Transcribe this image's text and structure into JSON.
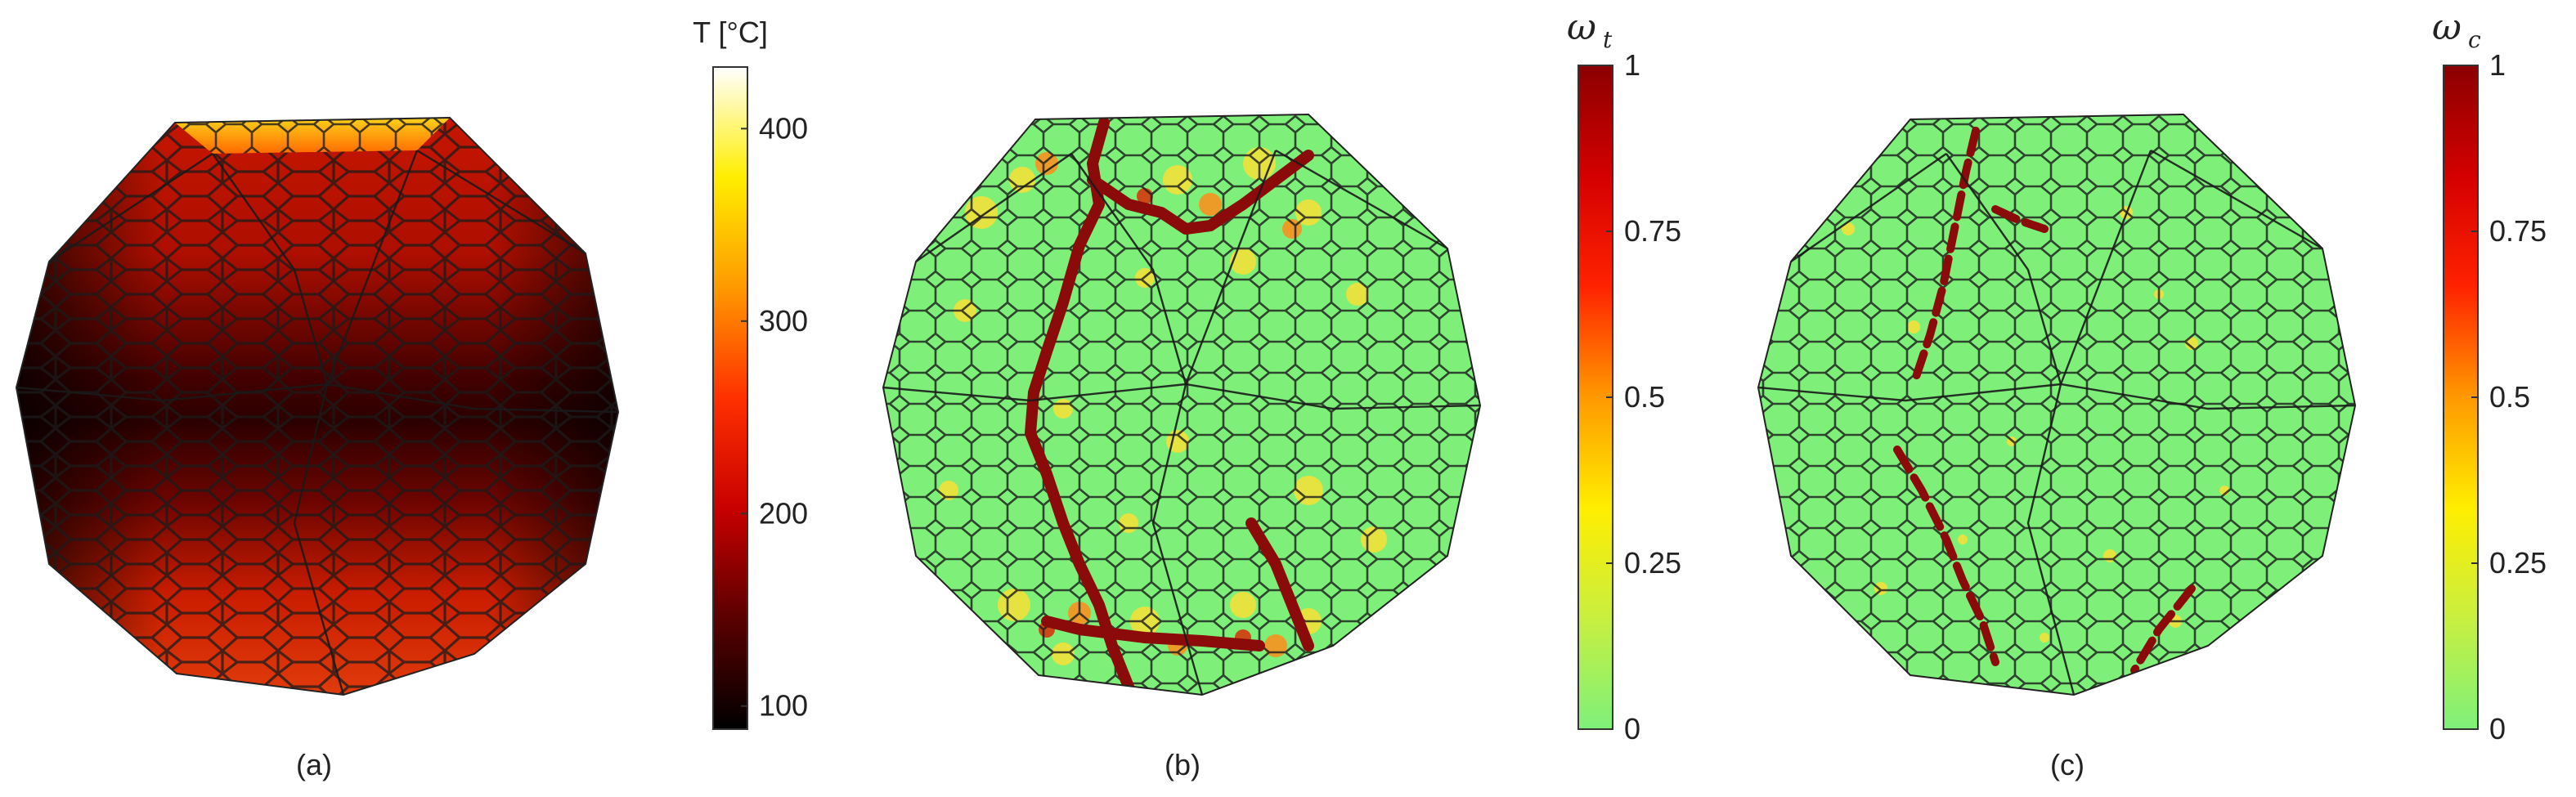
{
  "panels": [
    {
      "id": "a",
      "caption": "(a)",
      "colorbar": {
        "title": "T [°C]",
        "title_symbol": "",
        "title_subscript": "",
        "ticks": [
          {
            "value": 100,
            "label": "100"
          },
          {
            "value": 200,
            "label": "200"
          },
          {
            "value": 300,
            "label": "300"
          },
          {
            "value": 400,
            "label": "400"
          }
        ],
        "range": [
          88,
          432
        ],
        "colors": [
          "#000000",
          "#5a0000",
          "#c80000",
          "#ff3000",
          "#ff9900",
          "#ffee00",
          "#ffffff"
        ]
      }
    },
    {
      "id": "b",
      "caption": "(b)",
      "colorbar": {
        "title": "",
        "title_symbol": "ω",
        "title_subscript": "t",
        "ticks": [
          {
            "value": 0,
            "label": "0"
          },
          {
            "value": 0.25,
            "label": "0.25"
          },
          {
            "value": 0.5,
            "label": "0.5"
          },
          {
            "value": 0.75,
            "label": "0.75"
          },
          {
            "value": 1,
            "label": "1"
          }
        ],
        "range": [
          0,
          1
        ],
        "colors": [
          "#7ef07a",
          "#c8ef40",
          "#ffee00",
          "#ff9900",
          "#ff2200",
          "#d40000",
          "#8b0000"
        ]
      }
    },
    {
      "id": "c",
      "caption": "(c)",
      "colorbar": {
        "title": "",
        "title_symbol": "ω",
        "title_subscript": "c",
        "ticks": [
          {
            "value": 0,
            "label": "0"
          },
          {
            "value": 0.25,
            "label": "0.25"
          },
          {
            "value": 0.5,
            "label": "0.5"
          },
          {
            "value": 0.75,
            "label": "0.75"
          },
          {
            "value": 1,
            "label": "1"
          }
        ],
        "range": [
          0,
          1
        ],
        "colors": [
          "#7ef07a",
          "#c8ef40",
          "#ffee00",
          "#ff9900",
          "#ff2200",
          "#d40000",
          "#8b0000"
        ]
      }
    }
  ],
  "colors": {
    "mesh_line": "#1a1a1a",
    "healthy_green": "#7ef07a",
    "crack_dark_red": "#8b0a0a",
    "damage_yellow": "#f2e03a",
    "damage_orange": "#ff8c1a"
  }
}
